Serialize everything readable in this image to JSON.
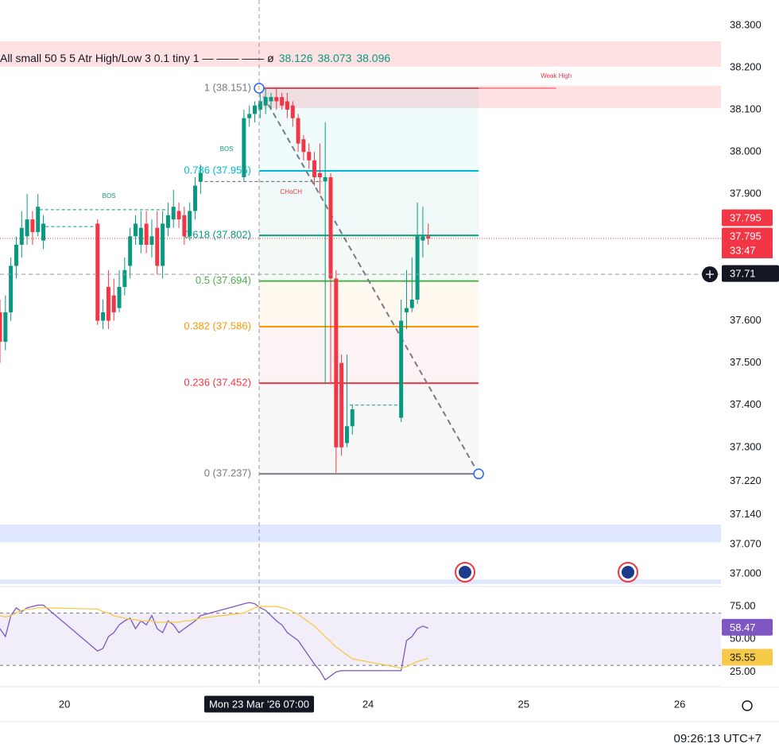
{
  "chart_data": [
    {
      "type": "candlestick",
      "indicator_legend": "All small 50 5 5 Atr High/Low 3 0.1 tiny 1 — —— —— ø",
      "indicator_values": [
        38.126,
        38.073,
        38.096
      ],
      "up_color": "#089981",
      "down_color": "#f23645",
      "x": [
        0,
        1,
        2,
        3,
        4,
        5,
        6,
        7,
        8,
        18,
        19,
        20,
        21,
        22,
        23,
        24,
        25,
        26,
        27,
        28,
        29,
        30,
        31,
        32,
        33,
        34,
        35,
        36,
        37,
        45,
        46,
        47,
        48,
        49,
        50,
        51,
        52,
        53,
        54,
        55,
        56,
        57,
        58,
        59,
        60,
        61,
        62,
        63,
        64,
        65,
        74,
        75,
        76,
        77,
        78,
        79
      ],
      "open": [
        37.62,
        37.55,
        37.62,
        37.73,
        37.78,
        37.8,
        37.84,
        37.81,
        37.79,
        37.83,
        37.6,
        37.68,
        37.66,
        37.63,
        37.68,
        37.73,
        37.8,
        37.78,
        37.83,
        37.78,
        37.82,
        37.73,
        37.82,
        37.84,
        37.86,
        37.85,
        37.8,
        37.86,
        37.93,
        37.94,
        38.08,
        38.09,
        38.1,
        38.11,
        38.12,
        38.13,
        38.13,
        38.12,
        38.11,
        38.08,
        38.03,
        38.0,
        37.98,
        37.95,
        37.93,
        37.94,
        37.7,
        37.5,
        37.31,
        37.35,
        37.37,
        37.62,
        37.63,
        37.65,
        37.79,
        37.8
      ],
      "high": [
        37.65,
        37.66,
        37.75,
        37.8,
        37.86,
        37.9,
        37.86,
        37.9,
        37.85,
        37.84,
        37.65,
        37.72,
        37.7,
        37.72,
        37.75,
        37.82,
        37.85,
        37.86,
        37.86,
        37.84,
        37.86,
        37.86,
        37.88,
        37.91,
        37.88,
        37.87,
        37.88,
        37.94,
        37.97,
        38.1,
        38.11,
        38.12,
        38.14,
        38.15,
        38.14,
        38.15,
        38.14,
        38.14,
        38.12,
        38.09,
        38.04,
        38.02,
        38.0,
        38.02,
        38.07,
        37.95,
        37.72,
        37.52,
        37.52,
        37.4,
        37.65,
        37.72,
        37.75,
        37.88,
        37.87,
        37.83
      ],
      "low": [
        37.5,
        37.53,
        37.6,
        37.7,
        37.75,
        37.78,
        37.78,
        37.8,
        37.77,
        37.59,
        37.58,
        37.58,
        37.6,
        37.62,
        37.66,
        37.7,
        37.78,
        37.76,
        37.76,
        37.75,
        37.71,
        37.7,
        37.8,
        37.82,
        37.82,
        37.78,
        37.79,
        37.84,
        37.9,
        37.93,
        38.06,
        38.07,
        38.08,
        38.09,
        38.1,
        38.1,
        38.1,
        38.08,
        38.06,
        38.0,
        37.98,
        37.96,
        37.92,
        37.9,
        37.45,
        37.45,
        37.24,
        37.28,
        37.3,
        37.33,
        37.36,
        37.58,
        37.62,
        37.64,
        37.75,
        37.78
      ],
      "close": [
        37.55,
        37.62,
        37.73,
        37.78,
        37.82,
        37.84,
        37.81,
        37.87,
        37.83,
        37.6,
        37.62,
        37.6,
        37.62,
        37.68,
        37.72,
        37.8,
        37.83,
        37.82,
        37.78,
        37.8,
        37.73,
        37.83,
        37.85,
        37.87,
        37.84,
        37.8,
        37.86,
        37.92,
        37.95,
        38.08,
        38.09,
        38.11,
        38.12,
        38.13,
        38.13,
        38.12,
        38.11,
        38.1,
        38.08,
        38.02,
        38.0,
        37.98,
        37.94,
        37.94,
        37.94,
        37.7,
        37.3,
        37.3,
        37.35,
        37.39,
        37.6,
        37.63,
        37.65,
        37.8,
        37.8,
        37.795
      ],
      "xlim": [
        0,
        133
      ],
      "xticks": [
        {
          "value": 11.9,
          "label": "20"
        },
        {
          "value": 67.9,
          "label": "24"
        },
        {
          "value": 96.6,
          "label": "25"
        },
        {
          "value": 125.4,
          "label": "26"
        }
      ],
      "ylim": [
        36.972,
        38.36
      ],
      "yticks": [
        {
          "value": 38.3,
          "label": "38.300"
        },
        {
          "value": 38.2,
          "label": "38.200"
        },
        {
          "value": 38.1,
          "label": "38.100"
        },
        {
          "value": 38.0,
          "label": "38.000"
        },
        {
          "value": 37.9,
          "label": "37.900"
        },
        {
          "value": 37.6,
          "label": "37.600"
        },
        {
          "value": 37.5,
          "label": "37.500"
        },
        {
          "value": 37.4,
          "label": "37.400"
        },
        {
          "value": 37.3,
          "label": "37.300"
        },
        {
          "value": 37.22,
          "label": "37.220"
        },
        {
          "value": 37.14,
          "label": "37.140"
        },
        {
          "value": 37.07,
          "label": "37.070"
        },
        {
          "value": 37.0,
          "label": "37.000"
        }
      ],
      "grid": false,
      "zones": [
        {
          "from": 38.262,
          "to": 38.202,
          "x0": 0,
          "x1": 133,
          "color": "#f23645"
        },
        {
          "from": 38.157,
          "to": 38.104,
          "x0": 48.3,
          "x1": 133,
          "color": "#f23645"
        },
        {
          "from": 37.117,
          "to": 37.075,
          "x0": 0,
          "x1": 133,
          "color": "#2962ff"
        },
        {
          "from": 36.987,
          "to": 36.976,
          "x0": 0,
          "x1": 133,
          "color": "#2962ff"
        }
      ],
      "fib": {
        "x_range": [
          47.8,
          88.3
        ],
        "levels": [
          {
            "label": "1 (38.151)",
            "value": 38.151,
            "color": "#787b86"
          },
          {
            "label": "0.786 (37.955)",
            "value": 37.955,
            "color": "#00bcd4"
          },
          {
            "label": "0.618 (37.802)",
            "value": 37.802,
            "color": "#089981"
          },
          {
            "label": "0.5 (37.694)",
            "value": 37.694,
            "color": "#4caf50"
          },
          {
            "label": "0.382 (37.586)",
            "value": 37.586,
            "color": "#ff9800"
          },
          {
            "label": "0.236 (37.452)",
            "value": 37.452,
            "color": "#f23645"
          },
          {
            "label": "0 (37.237)",
            "value": 37.237,
            "color": "#787b86"
          }
        ]
      },
      "weak_high": {
        "text": "Weak High",
        "y": 38.151,
        "x0": 48.3,
        "x1": 102.6,
        "color": "#f23645"
      },
      "structure_lines": [
        {
          "y": 37.863,
          "x0": 7.3,
          "x1": 30.8,
          "color": "#089981"
        },
        {
          "y": 37.823,
          "x0": 8.4,
          "x1": 17.7,
          "color": "#089981"
        },
        {
          "y": 37.93,
          "x0": 36.7,
          "x1": 59.4,
          "color": "#5d606b"
        },
        {
          "y": 37.4,
          "x0": 64.5,
          "x1": 73.8,
          "color": "#089981"
        }
      ],
      "annotations": [
        {
          "text": "BOS",
          "x": 20.1,
          "y": 37.895,
          "color": "#089981"
        },
        {
          "text": "BOS",
          "x": 41.8,
          "y": 38.006,
          "color": "#089981"
        },
        {
          "text": "CHoCH",
          "x": 53.7,
          "y": 37.904,
          "color": "#f23645"
        }
      ],
      "indicator_last": 37.795,
      "countdown": "33:47",
      "crosshair": {
        "x": {
          "value": 47.8,
          "label": "Mon 23 Mar '26 07:00"
        },
        "y": 37.71
      }
    },
    {
      "type": "line",
      "series": [
        {
          "color": "#7e57c2",
          "values": [
            58,
            52,
            68,
            74,
            71,
            74,
            75,
            76,
            76,
            41,
            43,
            52,
            55,
            61,
            64,
            66,
            58,
            64,
            61,
            68,
            58,
            55,
            64,
            61,
            55,
            58,
            61,
            64,
            68,
            77,
            78,
            77,
            74,
            72,
            68,
            64,
            61,
            55,
            52,
            49,
            43,
            37,
            31,
            26,
            19,
            22,
            25,
            26,
            26,
            26,
            26,
            49,
            52,
            58,
            60,
            58.47
          ]
        },
        {
          "color": "#f7c948",
          "values": [
            68,
            67,
            68,
            70,
            72,
            73,
            73,
            74,
            74,
            73,
            71,
            70,
            68,
            67,
            66,
            65,
            65,
            64,
            64,
            64,
            63,
            63,
            63,
            63,
            63,
            64,
            64,
            65,
            66,
            70,
            72,
            74,
            75,
            75,
            75,
            75,
            74,
            73,
            71,
            69,
            66,
            63,
            60,
            56,
            52,
            48,
            44,
            41,
            38,
            35,
            28,
            29,
            31,
            33,
            34,
            35.55
          ]
        }
      ],
      "ylim": [
        15,
        89
      ],
      "yticks": [
        {
          "value": 75,
          "label": "75.00"
        },
        {
          "value": 50,
          "label": "50.00"
        },
        {
          "value": 25,
          "label": "25.00"
        }
      ],
      "bands": [
        70,
        30
      ]
    }
  ],
  "clock": "09:26:13 UTC+7"
}
